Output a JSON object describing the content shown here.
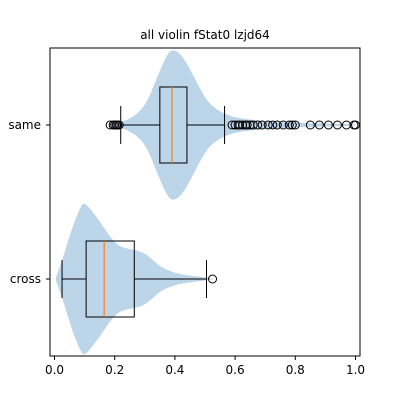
{
  "chart_data": {
    "type": "violin",
    "title": "all violin fStat0 lzjd64",
    "orientation": "horizontal",
    "xlabel": "",
    "ylabel": "",
    "xlim": [
      -0.015,
      1.015
    ],
    "xticks": [
      0.0,
      0.2,
      0.4,
      0.6,
      0.8,
      1.0
    ],
    "xtick_labels": [
      "0.0",
      "0.2",
      "0.4",
      "0.6",
      "0.8",
      "1.0"
    ],
    "categories": [
      "cross",
      "same"
    ],
    "grid": false,
    "colors": {
      "violin_fill": "#b9d3e8",
      "median_line": "#ff7f0e",
      "box_line": "#000000",
      "outlier_marker": "#000000"
    },
    "groups": [
      {
        "name": "cross",
        "box": {
          "whisker_low": 0.025,
          "q1": 0.105,
          "median": 0.165,
          "q3": 0.265,
          "whisker_high": 0.505
        },
        "outliers": [
          0.525
        ],
        "violin_profile": [
          [
            0.005,
            0.02
          ],
          [
            0.03,
            0.3
          ],
          [
            0.06,
            0.7
          ],
          [
            0.09,
            0.98
          ],
          [
            0.1,
            1.0
          ],
          [
            0.12,
            0.92
          ],
          [
            0.15,
            0.76
          ],
          [
            0.18,
            0.58
          ],
          [
            0.21,
            0.44
          ],
          [
            0.24,
            0.4
          ],
          [
            0.27,
            0.38
          ],
          [
            0.3,
            0.34
          ],
          [
            0.33,
            0.24
          ],
          [
            0.36,
            0.14
          ],
          [
            0.4,
            0.08
          ],
          [
            0.44,
            0.05
          ],
          [
            0.48,
            0.03
          ],
          [
            0.52,
            0.01
          ],
          [
            0.53,
            0.0
          ]
        ]
      },
      {
        "name": "same",
        "box": {
          "whisker_low": 0.22,
          "q1": 0.35,
          "median": 0.39,
          "q3": 0.44,
          "whisker_high": 0.565
        },
        "outliers": [
          0.185,
          0.195,
          0.2,
          0.205,
          0.21,
          0.215,
          0.59,
          0.6,
          0.61,
          0.615,
          0.625,
          0.635,
          0.64,
          0.65,
          0.66,
          0.675,
          0.69,
          0.71,
          0.725,
          0.74,
          0.76,
          0.78,
          0.79,
          0.8,
          0.85,
          0.88,
          0.91,
          0.94,
          0.97,
          0.995,
          1.0
        ],
        "violin_profile": [
          [
            0.18,
            0.0
          ],
          [
            0.2,
            0.02
          ],
          [
            0.24,
            0.06
          ],
          [
            0.28,
            0.16
          ],
          [
            0.31,
            0.32
          ],
          [
            0.34,
            0.62
          ],
          [
            0.37,
            0.9
          ],
          [
            0.39,
            1.0
          ],
          [
            0.42,
            0.94
          ],
          [
            0.45,
            0.74
          ],
          [
            0.48,
            0.5
          ],
          [
            0.51,
            0.3
          ],
          [
            0.54,
            0.2
          ],
          [
            0.57,
            0.14
          ],
          [
            0.6,
            0.1
          ],
          [
            0.65,
            0.07
          ],
          [
            0.7,
            0.05
          ],
          [
            0.8,
            0.03
          ],
          [
            0.9,
            0.02
          ],
          [
            1.0,
            0.01
          ]
        ]
      }
    ]
  }
}
